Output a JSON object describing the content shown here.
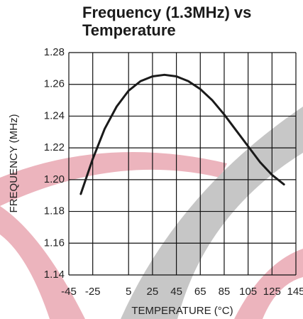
{
  "chart_data": {
    "type": "line",
    "title": "Frequency (1.3MHz) vs Temperature",
    "x_label": "TEMPERATURE (°C)",
    "y_label": "FREQUENCY (MHz)",
    "x": [
      -35,
      -25,
      -15,
      -5,
      5,
      15,
      25,
      35,
      45,
      55,
      65,
      75,
      85,
      95,
      105,
      115,
      125,
      135
    ],
    "series": [
      {
        "name": "Frequency",
        "color": "#1a1a1a",
        "values": [
          1.191,
          1.213,
          1.232,
          1.246,
          1.256,
          1.262,
          1.265,
          1.266,
          1.265,
          1.262,
          1.257,
          1.25,
          1.241,
          1.231,
          1.221,
          1.211,
          1.203,
          1.197
        ]
      }
    ],
    "xlim": [
      -45,
      145
    ],
    "xticks": [
      -45,
      -25,
      5,
      25,
      45,
      65,
      85,
      105,
      125,
      145
    ],
    "ylim": [
      1.14,
      1.28
    ],
    "yticks": [
      1.14,
      1.16,
      1.18,
      {
        "value": 1.2,
        "label": "1.20"
      },
      1.22,
      1.24,
      1.26,
      1.28
    ],
    "grid": true
  }
}
